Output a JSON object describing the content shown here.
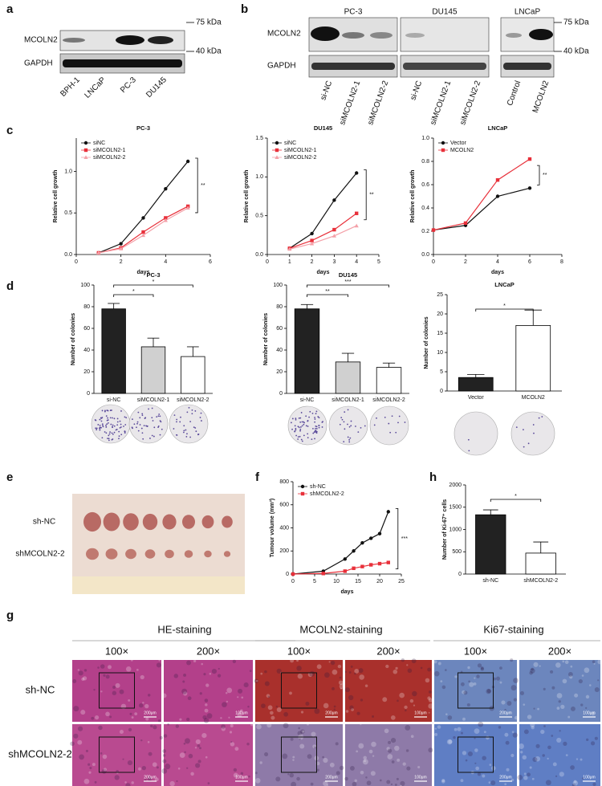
{
  "panel_labels": [
    "a",
    "b",
    "c",
    "d",
    "e",
    "f",
    "g",
    "h"
  ],
  "blot_a": {
    "rows": [
      "MCOLN2",
      "GAPDH"
    ],
    "markers": [
      "75 kDa",
      "40 kDa"
    ],
    "lanes": [
      "BPH-1",
      "LNCaP",
      "PC-3",
      "DU145"
    ]
  },
  "blot_b": {
    "groups": [
      "PC-3",
      "DU145",
      "LNCaP"
    ],
    "rows": [
      "MCOLN2",
      "GAPDH"
    ],
    "markers": [
      "75 kDa",
      "40 kDa"
    ],
    "lanes": [
      "si-NC",
      "siMCOLN2-1",
      "siMCOLN2-2",
      "si-NC",
      "siMCOLN2-1",
      "siMCOLN2-2",
      "Control",
      "MCOLN2"
    ]
  },
  "chart_data": [
    {
      "type": "line",
      "title": "PC-3",
      "xlabel": "days",
      "ylabel": "Relative cell growth",
      "x": [
        1,
        2,
        3,
        4,
        5
      ],
      "series": [
        {
          "name": "siNC",
          "color": "#111111",
          "marker": "circle",
          "values": [
            0.02,
            0.13,
            0.44,
            0.79,
            1.12
          ]
        },
        {
          "name": "siMCOLN2-1",
          "color": "#e8303a",
          "marker": "square",
          "values": [
            0.02,
            0.08,
            0.27,
            0.44,
            0.58
          ]
        },
        {
          "name": "siMCOLN2-2",
          "color": "#f4a0a8",
          "marker": "triangle",
          "values": [
            0.02,
            0.07,
            0.23,
            0.41,
            0.56
          ]
        }
      ],
      "xlim": [
        0,
        6
      ],
      "ylim": [
        0,
        1.4
      ],
      "xticks": [
        0,
        2,
        4,
        6
      ],
      "yticks": [
        {
          "value": 0,
          "label": "0.0"
        },
        {
          "value": 0.5,
          "label": "0.5"
        },
        {
          "value": 1,
          "label": "1.0"
        }
      ],
      "annotations": [
        "**"
      ],
      "legend": "upper left"
    },
    {
      "type": "line",
      "title": "DU145",
      "xlabel": "days",
      "ylabel": "Relative cell growth",
      "x": [
        1,
        2,
        3,
        4
      ],
      "series": [
        {
          "name": "siNC",
          "color": "#111111",
          "marker": "circle",
          "values": [
            0.08,
            0.27,
            0.7,
            1.05
          ]
        },
        {
          "name": "siMCOLN2-1",
          "color": "#e8303a",
          "marker": "square",
          "values": [
            0.08,
            0.18,
            0.32,
            0.53
          ]
        },
        {
          "name": "siMCOLN2-2",
          "color": "#f4a0a8",
          "marker": "triangle",
          "values": [
            0.07,
            0.14,
            0.24,
            0.37
          ]
        }
      ],
      "xlim": [
        0,
        5
      ],
      "ylim": [
        0,
        1.5
      ],
      "xticks": [
        0,
        1,
        2,
        3,
        4,
        5
      ],
      "yticks": [
        {
          "value": 0,
          "label": "0.0"
        },
        {
          "value": 0.5,
          "label": "0.5"
        },
        {
          "value": 1,
          "label": "1.0"
        },
        {
          "value": 1.5,
          "label": "1.5"
        }
      ],
      "annotations": [
        "**"
      ],
      "legend": "upper left"
    },
    {
      "type": "line",
      "title": "LNCaP",
      "xlabel": "days",
      "ylabel": "Relative cell growth",
      "x": [
        0,
        2,
        4,
        6
      ],
      "series": [
        {
          "name": "Vector",
          "color": "#111111",
          "marker": "circle",
          "values": [
            0.21,
            0.25,
            0.5,
            0.57
          ]
        },
        {
          "name": "MCOLN2",
          "color": "#e8303a",
          "marker": "square",
          "values": [
            0.21,
            0.27,
            0.64,
            0.82
          ]
        }
      ],
      "xlim": [
        0,
        8
      ],
      "ylim": [
        0,
        1
      ],
      "xticks": [
        0,
        2,
        4,
        6,
        8
      ],
      "yticks": [
        {
          "value": 0,
          "label": "0.0"
        },
        0.2,
        0.4,
        0.6,
        0.8,
        {
          "value": 1,
          "label": "1.0"
        }
      ],
      "annotations": [
        "**"
      ],
      "legend": "upper left"
    },
    {
      "type": "bar",
      "title": "PC-3",
      "ylabel": "Number of colonies",
      "categories": [
        "si-NC",
        "siMCOLN2-1",
        "siMCOLN2-2"
      ],
      "values": [
        78,
        43,
        34
      ],
      "errors": [
        5,
        8,
        9
      ],
      "colors": [
        "#222222",
        "#d0d0d0",
        "#ffffff"
      ],
      "ylim": [
        0,
        100
      ],
      "yticks": [
        0,
        20,
        40,
        60,
        80,
        100
      ],
      "annotations": [
        "*",
        "*"
      ]
    },
    {
      "type": "bar",
      "title": "DU145",
      "ylabel": "Number of colonies",
      "categories": [
        "si-NC",
        "siMCOLN2-1",
        "siMCOLN2-2"
      ],
      "values": [
        78,
        29,
        24
      ],
      "errors": [
        4,
        8,
        4
      ],
      "colors": [
        "#222222",
        "#d0d0d0",
        "#ffffff"
      ],
      "ylim": [
        0,
        100
      ],
      "yticks": [
        0,
        20,
        40,
        60,
        80,
        100
      ],
      "annotations": [
        "**",
        "***"
      ]
    },
    {
      "type": "bar",
      "title": "LNCaP",
      "ylabel": "Number of colonies",
      "categories": [
        "Vector",
        "MCOLN2"
      ],
      "values": [
        3.5,
        17
      ],
      "errors": [
        0.8,
        4
      ],
      "colors": [
        "#222222",
        "#ffffff"
      ],
      "ylim": [
        0,
        25
      ],
      "yticks": [
        0,
        5,
        10,
        15,
        20,
        25
      ],
      "annotations": [
        "*"
      ]
    },
    {
      "type": "line",
      "xlabel": "days",
      "ylabel": "Tumour volume (mm³)",
      "x": [
        0,
        7,
        12,
        14,
        16,
        18,
        20,
        22
      ],
      "series": [
        {
          "name": "sh-NC",
          "color": "#111111",
          "marker": "circle",
          "values": [
            0,
            25,
            130,
            200,
            270,
            310,
            350,
            540
          ]
        },
        {
          "name": "shMCOLN2-2",
          "color": "#e8303a",
          "marker": "square",
          "values": [
            0,
            5,
            25,
            50,
            65,
            80,
            90,
            100
          ]
        }
      ],
      "xlim": [
        0,
        25
      ],
      "ylim": [
        0,
        800
      ],
      "xticks": [
        0,
        5,
        10,
        15,
        20,
        25
      ],
      "yticks": [
        0,
        200,
        400,
        600,
        800
      ],
      "annotations": [
        "***"
      ],
      "legend": "upper left"
    },
    {
      "type": "bar",
      "ylabel": "Number of Ki-67⁺ cells",
      "categories": [
        "sh-NC",
        "shMCOLN2-2"
      ],
      "values": [
        1330,
        470
      ],
      "errors": [
        110,
        250
      ],
      "colors": [
        "#222222",
        "#ffffff"
      ],
      "ylim": [
        0,
        2000
      ],
      "yticks": [
        0,
        500,
        1000,
        1500,
        2000
      ],
      "annotations": [
        "*"
      ]
    }
  ],
  "photo_e": {
    "rows": [
      "sh-NC",
      "shMCOLN2-2"
    ]
  },
  "histology_g": {
    "stains": [
      "HE-staining",
      "MCOLN2-staining",
      "Ki67-staining"
    ],
    "magnifications": [
      "100×",
      "200×",
      "100×",
      "200×",
      "100×",
      "200×"
    ],
    "rows": [
      "sh-NC",
      "shMCOLN2-2"
    ],
    "scale_bars": [
      "200μm",
      "100μm"
    ]
  }
}
